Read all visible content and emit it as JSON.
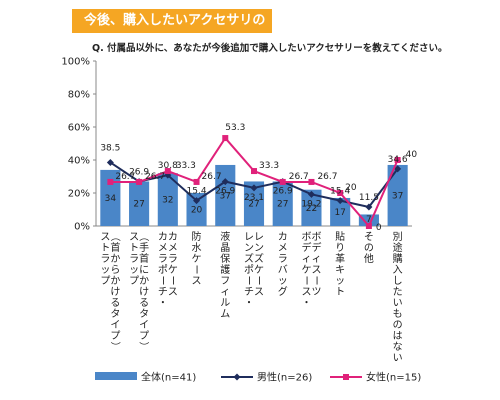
{
  "header": {
    "banner": "今後、購入したいアクセサリの種類",
    "question": "Q. 付属品以外に、あなたが今後追加で購入したいアクセサリーを教えてください。"
  },
  "colors": {
    "bar": "#4a86c8",
    "male": "#1f2d5c",
    "female": "#e0217a",
    "banner": "#f5a623"
  },
  "chart_data": {
    "type": "bar",
    "categories": [
      "ストラップ\n（首からかけるタイプ）",
      "ストラップ\n（手首にかけるタイプ）",
      "カメラポーチ・\nカメラケース",
      "防水ケース",
      "液晶保護フィルム",
      "レンズポーチ・\nレンズケース",
      "カメラバッグ",
      "ボディケース・\nボディスーツ",
      "貼り革キット",
      "その他",
      "別途購入したいものはない"
    ],
    "series": [
      {
        "name": "全体(n=41)",
        "type": "bar",
        "values": [
          34,
          27,
          32,
          20,
          37,
          27,
          27,
          22,
          17,
          7,
          37
        ]
      },
      {
        "name": "男性(n=26)",
        "type": "line",
        "values": [
          38.5,
          26.9,
          30.8,
          15.4,
          26.9,
          23.1,
          26.9,
          19.2,
          15.4,
          11.5,
          34.6
        ]
      },
      {
        "name": "女性(n=15)",
        "type": "line",
        "values": [
          26.7,
          26.7,
          33.3,
          26.7,
          53.3,
          33.3,
          26.7,
          26.7,
          20,
          0,
          40
        ]
      }
    ],
    "male_labels": [
      "38.5",
      "26.9",
      "30.8",
      "15.4",
      "26.9",
      "23.1",
      "26.9",
      "19.2",
      "15.4",
      "11.5",
      "34.6"
    ],
    "female_labels": [
      "26.7",
      "26.7",
      "33.3",
      "26.7",
      "53.3",
      "33.3",
      "26.7",
      "26.7",
      "20",
      "0",
      "40"
    ],
    "ylim": [
      0,
      100
    ],
    "yticks": [
      "0%",
      "20%",
      "40%",
      "60%",
      "80%",
      "100%"
    ],
    "legend_position": "bottom"
  }
}
